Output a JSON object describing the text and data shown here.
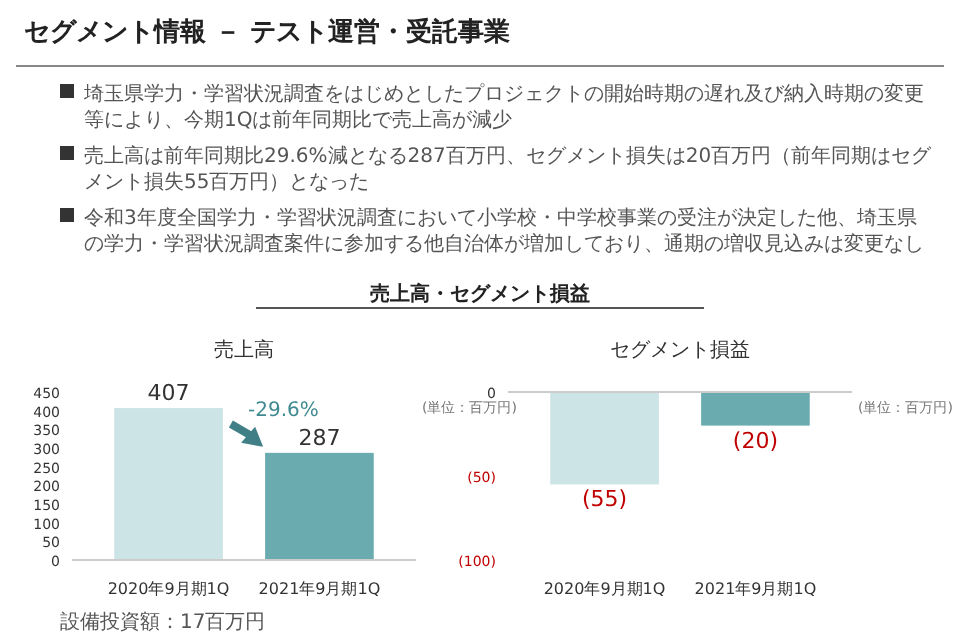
{
  "chart_data": [
    {
      "type": "other",
      "title": "セグメント情報 － テスト運営・受託事業",
      "annotations": [
        "埼玉県学力・学習状況調査をはじめとしたプロジェクトの開始時期の遅れ及び納入時期の変更等により、今期1Qは前年同期比で売上高が減少",
        "売上高は前年同期比29.6%減となる287百万円、セグメント損失は20百万円（前年同期はセグメント損失55百万円）となった",
        "令和3年度全国学力・学習状況調査において小学校・中学校事業の受注が決定した他、埼玉県の学力・学習状況調査案件に参加する他自治体が増加しており、通期の増収見込みは変更なし",
        "売上高・セグメント損益",
        "設備投資額：17百万円"
      ]
    },
    {
      "type": "bar",
      "title": "売上高",
      "categories": [
        "2020年9月期1Q",
        "2021年9月期1Q"
      ],
      "values": [
        407,
        287
      ],
      "colors": [
        "#cde4e6",
        "#6aabb0"
      ],
      "ylim": [
        0,
        450
      ],
      "yticks": [
        0,
        50,
        100,
        150,
        200,
        250,
        300,
        350,
        400,
        450
      ],
      "data_labels": true,
      "annotations": [
        "-29.6%",
        "(単位：百万円)"
      ]
    },
    {
      "type": "bar",
      "title": "セグメント損益",
      "categories": [
        "2020年9月期1Q",
        "2021年9月期1Q"
      ],
      "values": [
        -55,
        -20
      ],
      "colors": [
        "#cde4e6",
        "#6aabb0"
      ],
      "ylim": [
        -100,
        0
      ],
      "yticks": [
        {
          "value": 0,
          "label": "0"
        },
        {
          "value": -50,
          "label": "(50)"
        },
        {
          "value": -100,
          "label": "(100)"
        }
      ],
      "value_labels": [
        "(55)",
        "(20)"
      ],
      "annotations": [
        "(単位：百万円)"
      ]
    }
  ]
}
